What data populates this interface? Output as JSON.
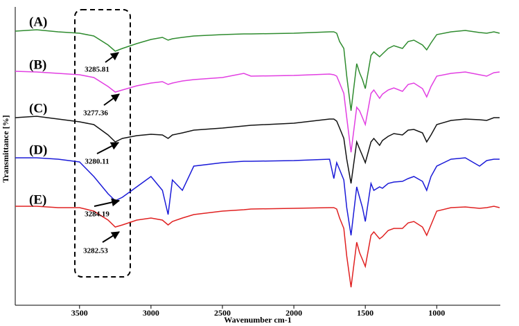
{
  "chart_data": {
    "type": "line",
    "x_label": "Wavenumber cm-1",
    "y_label": "Transmittance [%]",
    "x": [
      3950,
      3800,
      3650,
      3500,
      3400,
      3300,
      3250,
      3200,
      3100,
      3000,
      2920,
      2880,
      2850,
      2780,
      2700,
      2500,
      2350,
      2300,
      2000,
      1750,
      1720,
      1700,
      1680,
      1650,
      1630,
      1600,
      1560,
      1540,
      1520,
      1500,
      1460,
      1440,
      1400,
      1380,
      1340,
      1300,
      1240,
      1200,
      1160,
      1100,
      1070,
      1040,
      1000,
      900,
      800,
      700,
      650,
      600,
      560
    ],
    "xlim": [
      3950,
      560
    ],
    "xticks": [
      3500,
      3000,
      2500,
      2000,
      1500,
      1000
    ],
    "ylim": [
      0,
      430
    ],
    "series": [
      {
        "name": "(A)",
        "color": "#2e8b2e",
        "values": [
          395,
          397,
          394,
          392,
          388,
          375,
          366,
          370,
          377,
          383,
          386,
          382,
          384,
          386,
          388,
          390,
          391,
          391,
          392,
          394,
          394,
          392,
          380,
          370,
          330,
          280,
          348,
          335,
          325,
          312,
          360,
          365,
          358,
          362,
          370,
          374,
          370,
          380,
          382,
          375,
          368,
          378,
          390,
          394,
          396,
          393,
          392,
          394,
          392
        ]
      },
      {
        "name": "(B)",
        "color": "#e23ee2",
        "values": [
          337,
          336,
          334,
          332,
          328,
          315,
          307,
          310,
          316,
          320,
          322,
          318,
          320,
          323,
          325,
          328,
          334,
          330,
          331,
          333,
          332,
          330,
          320,
          305,
          270,
          220,
          285,
          280,
          270,
          260,
          305,
          310,
          298,
          304,
          310,
          313,
          308,
          318,
          320,
          312,
          300,
          315,
          330,
          334,
          336,
          332,
          330,
          335,
          336
        ]
      },
      {
        "name": "(C)",
        "color": "#111111",
        "values": [
          270,
          272,
          268,
          264,
          260,
          245,
          235,
          240,
          244,
          246,
          245,
          240,
          245,
          248,
          252,
          255,
          258,
          259,
          262,
          268,
          268,
          265,
          255,
          240,
          210,
          175,
          235,
          225,
          215,
          205,
          235,
          240,
          230,
          237,
          243,
          247,
          245,
          252,
          253,
          248,
          235,
          245,
          260,
          266,
          268,
          267,
          266,
          270,
          270
        ]
      },
      {
        "name": "(D)",
        "color": "#1a1ad8",
        "values": [
          212,
          212,
          210,
          206,
          185,
          160,
          150,
          155,
          170,
          185,
          165,
          130,
          180,
          165,
          200,
          205,
          207,
          207,
          208,
          210,
          182,
          205,
          195,
          180,
          140,
          100,
          170,
          155,
          140,
          120,
          175,
          165,
          170,
          168,
          175,
          177,
          178,
          182,
          185,
          178,
          165,
          185,
          200,
          210,
          212,
          200,
          208,
          210,
          210
        ]
      },
      {
        "name": "(E)",
        "color": "#e02020",
        "values": [
          142,
          142,
          140,
          140,
          135,
          122,
          112,
          115,
          122,
          125,
          122,
          115,
          120,
          125,
          130,
          135,
          137,
          138,
          139,
          140,
          140,
          138,
          125,
          110,
          70,
          25,
          90,
          75,
          65,
          55,
          100,
          105,
          95,
          98,
          107,
          110,
          110,
          118,
          120,
          112,
          100,
          115,
          135,
          140,
          141,
          139,
          140,
          142,
          140
        ]
      }
    ],
    "annotations": [
      "3285.81",
      "3277.36",
      "3280.11",
      "3284.19",
      "3282.53"
    ]
  }
}
